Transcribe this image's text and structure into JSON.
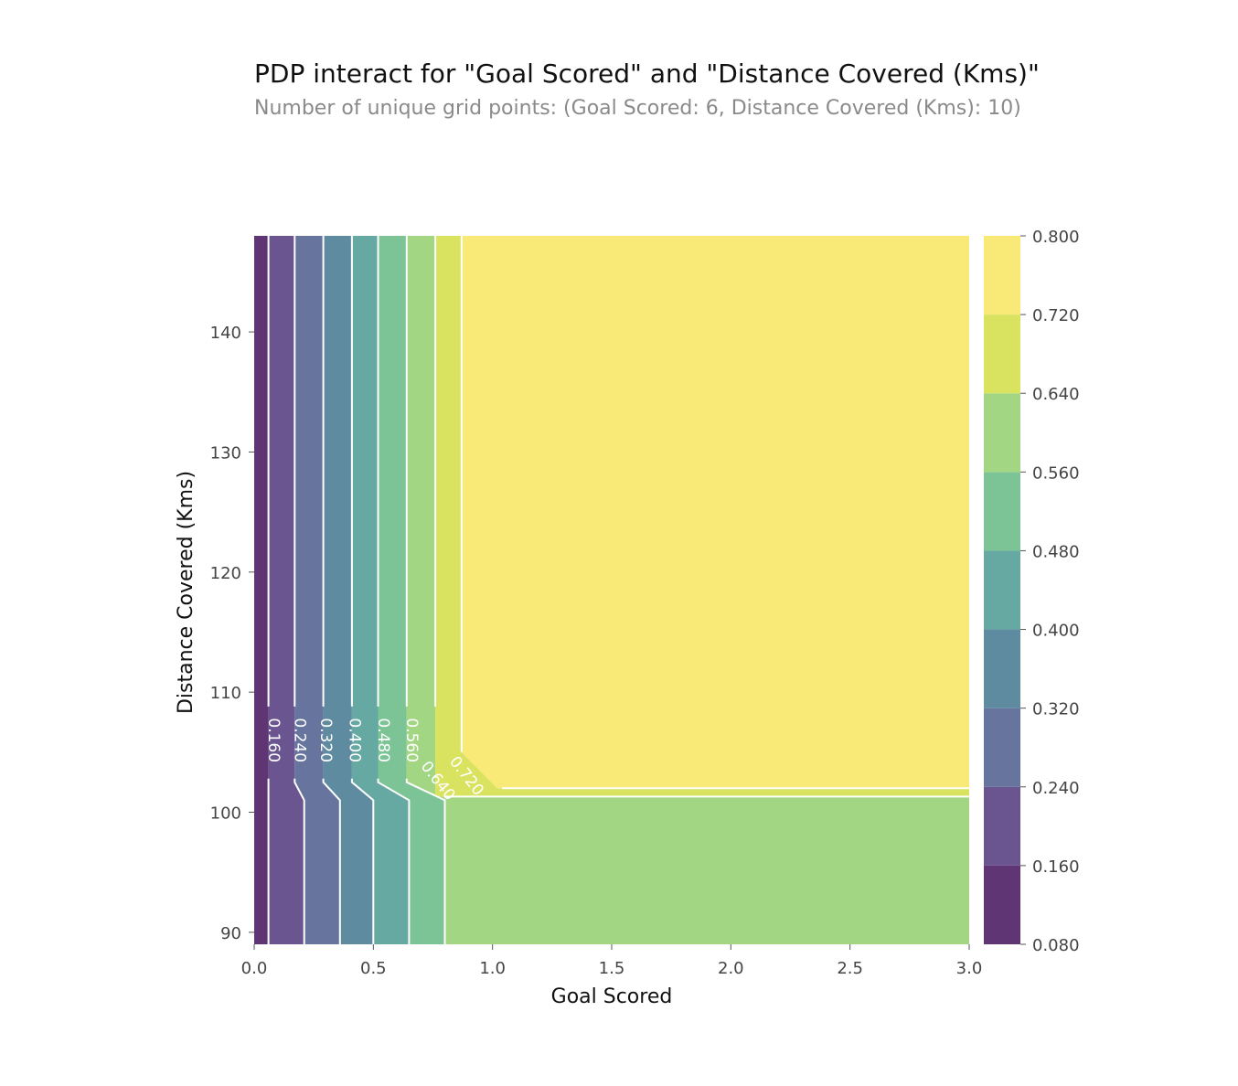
{
  "chart_data": {
    "type": "contour",
    "title": "PDP interact for \"Goal Scored\" and \"Distance Covered (Kms)\"",
    "subtitle": "Number of unique grid points: (Goal Scored: 6, Distance Covered (Kms): 10)",
    "xlabel": "Goal Scored",
    "ylabel": "Distance Covered (Kms)",
    "xlim": [
      0.0,
      3.0
    ],
    "ylim": [
      89,
      148
    ],
    "x_ticks": [
      0.0,
      0.5,
      1.0,
      1.5,
      2.0,
      2.5,
      3.0
    ],
    "x_tick_labels": [
      "0.0",
      "0.5",
      "1.0",
      "1.5",
      "2.0",
      "2.5",
      "3.0"
    ],
    "y_ticks": [
      90,
      100,
      110,
      120,
      130,
      140
    ],
    "y_tick_labels": [
      "90",
      "100",
      "110",
      "120",
      "130",
      "140"
    ],
    "colormap": "viridis",
    "levels": [
      0.08,
      0.16,
      0.24,
      0.32,
      0.4,
      0.48,
      0.56,
      0.64,
      0.72,
      0.8
    ],
    "level_colors": [
      "#5f3574",
      "#6a5590",
      "#66749e",
      "#5f8ba0",
      "#66a8a2",
      "#7cc496",
      "#a3d683",
      "#d9e35f",
      "#f9ea78"
    ],
    "colorbar_tick_labels": [
      "0.080",
      "0.160",
      "0.240",
      "0.320",
      "0.400",
      "0.480",
      "0.560",
      "0.640",
      "0.720",
      "0.800"
    ],
    "contour_boundaries": [
      {
        "level": 0.16,
        "x_upper": 0.06,
        "x_lower": 0.06
      },
      {
        "level": 0.24,
        "x_upper": 0.17,
        "x_lower": 0.21
      },
      {
        "level": 0.32,
        "x_upper": 0.29,
        "x_lower": 0.36
      },
      {
        "level": 0.4,
        "x_upper": 0.41,
        "x_lower": 0.5
      },
      {
        "level": 0.48,
        "x_upper": 0.52,
        "x_lower": 0.65
      },
      {
        "level": 0.56,
        "x_upper": 0.64,
        "x_lower": 0.8
      },
      {
        "level": 0.64,
        "x_upper": 0.76,
        "x_lower": 0.8,
        "y_break": 101.3
      },
      {
        "level": 0.72,
        "x_upper": 0.87,
        "x_lower": 1.02,
        "y_break": 102
      }
    ],
    "contour_labels": [
      {
        "text": "0.160",
        "x": 0.08,
        "y": 106
      },
      {
        "text": "0.240",
        "x": 0.19,
        "y": 106
      },
      {
        "text": "0.320",
        "x": 0.3,
        "y": 106
      },
      {
        "text": "0.400",
        "x": 0.42,
        "y": 106
      },
      {
        "text": "0.480",
        "x": 0.54,
        "y": 106
      },
      {
        "text": "0.560",
        "x": 0.66,
        "y": 106
      },
      {
        "text": "0.640",
        "x": 0.77,
        "y": 102.6
      },
      {
        "text": "0.720",
        "x": 0.89,
        "y": 103.0
      }
    ]
  }
}
